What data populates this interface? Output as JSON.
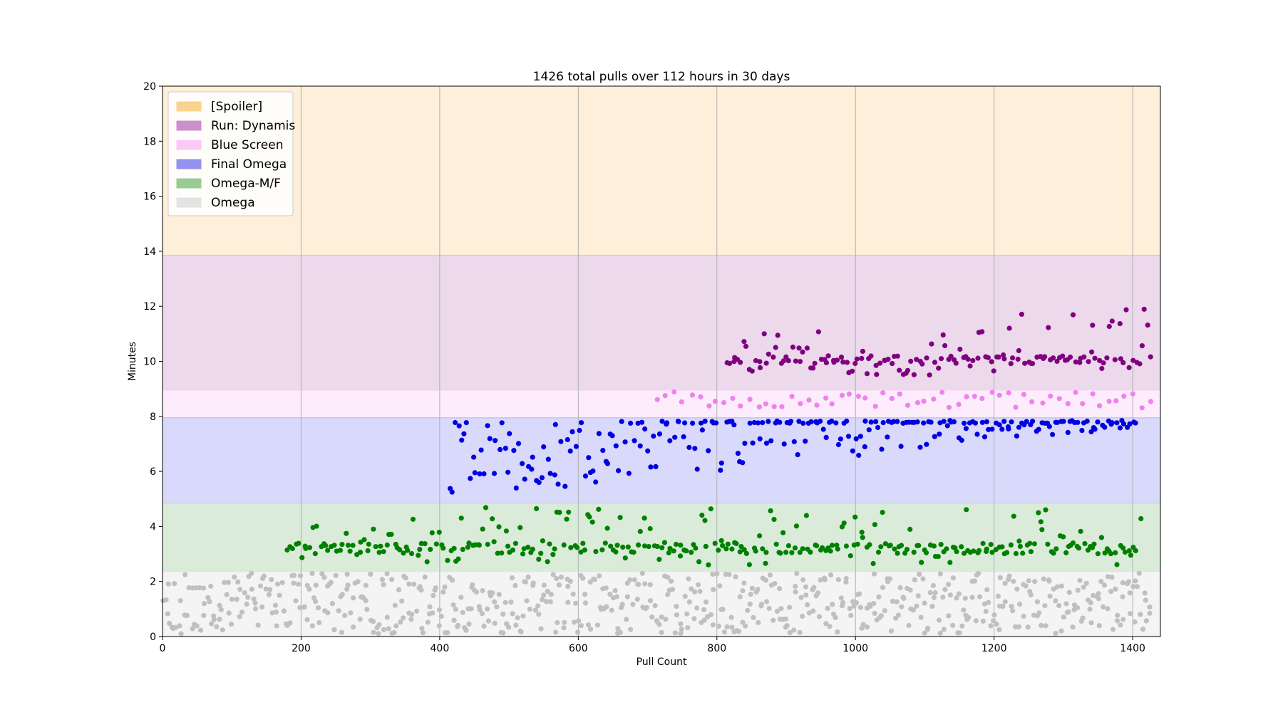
{
  "chart_data": {
    "type": "scatter",
    "title": "1426 total pulls over 112 hours in 30 days",
    "xlabel": "Pull Count",
    "ylabel": "Minutes",
    "xlim": [
      0,
      1440
    ],
    "ylim": [
      0,
      20
    ],
    "xticks": [
      "0",
      "200",
      "400",
      "600",
      "800",
      "1000",
      "1200",
      "1400"
    ],
    "yticks": [
      "0",
      "2",
      "4",
      "6",
      "8",
      "10",
      "12",
      "14",
      "16",
      "18",
      "20"
    ],
    "grid": "vertical",
    "legend_position": "top-left",
    "bands": [
      {
        "name": "[Spoiler]",
        "from": 13.85,
        "to": 20,
        "fill": "#fdefd9",
        "swatch": "#f9d38e"
      },
      {
        "name": "Run: Dynamis",
        "from": 8.95,
        "to": 13.85,
        "fill": "#ecd9ec",
        "swatch": "#cc8fcc"
      },
      {
        "name": "Blue Screen",
        "from": 7.95,
        "to": 8.95,
        "fill": "#fcecfc",
        "swatch": "#fbc9f7"
      },
      {
        "name": "Final Omega",
        "from": 4.85,
        "to": 7.95,
        "fill": "#d9d9fb",
        "swatch": "#9494ee"
      },
      {
        "name": "Omega-M/F",
        "from": 2.35,
        "to": 4.85,
        "fill": "#daecd9",
        "swatch": "#98cc95"
      },
      {
        "name": "Omega",
        "from": 0,
        "to": 2.35,
        "fill": "#f4f4f4",
        "swatch": "#e3e3e3"
      }
    ],
    "series": [
      {
        "name": "Omega",
        "color": "#c0c0c0",
        "x_range": [
          0,
          1425
        ],
        "y_range": [
          0.1,
          2.3
        ]
      },
      {
        "name": "Omega-M/F",
        "color": "#008000",
        "x_range": [
          180,
          1410
        ],
        "y_range": [
          2.6,
          4.7
        ]
      },
      {
        "name": "Final Omega",
        "color": "#0000e0",
        "x_range": [
          415,
          1405
        ],
        "y_range": [
          5.0,
          7.85
        ]
      },
      {
        "name": "Blue Screen",
        "color": "#ee82ee",
        "x_range": [
          715,
          1425
        ],
        "y_range": [
          8.3,
          8.9
        ]
      },
      {
        "name": "Run: Dynamis",
        "color": "#800080",
        "x_range": [
          815,
          1425
        ],
        "y_range": [
          9.5,
          12.7
        ]
      }
    ]
  }
}
